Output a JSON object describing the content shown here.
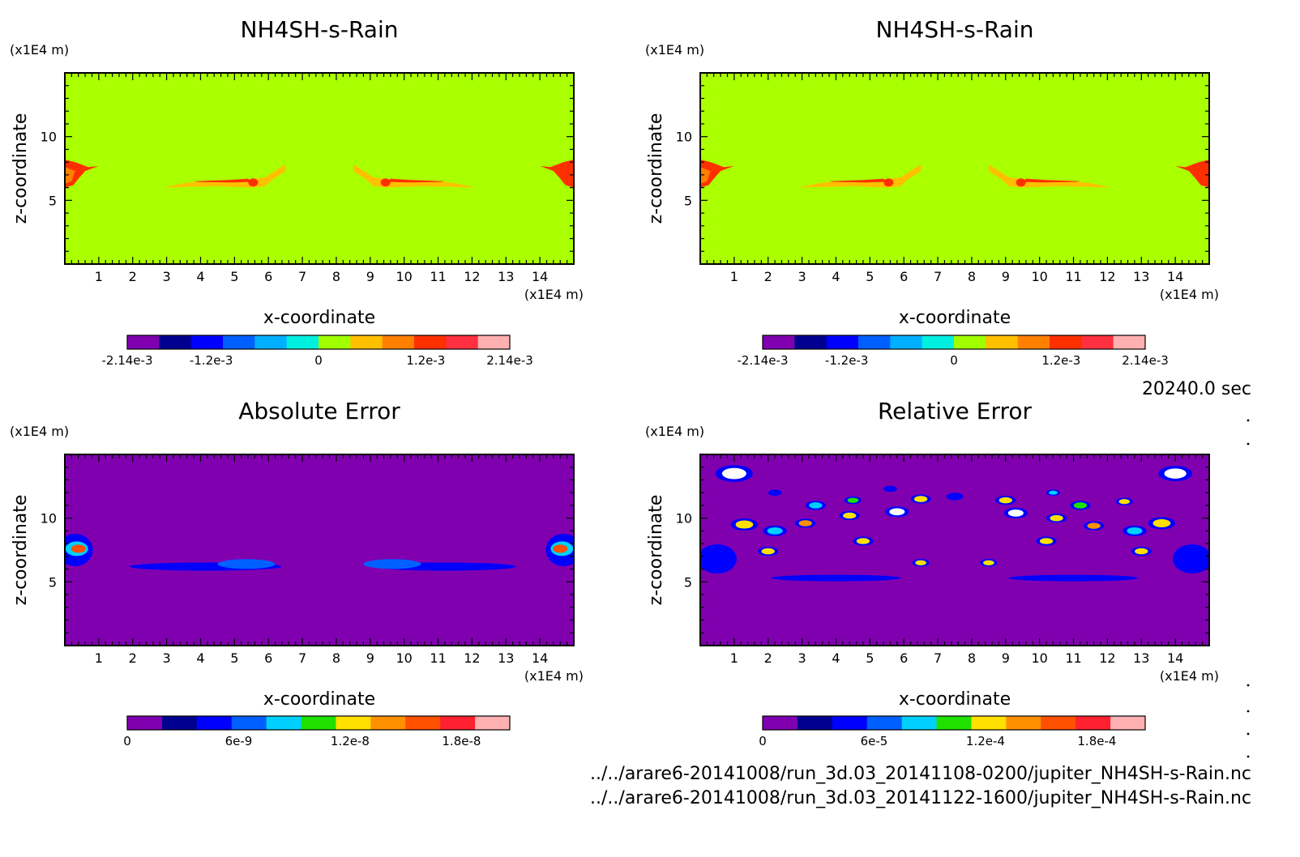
{
  "time_label": "20240.0 sec",
  "files": [
    "../../arare6-20141008/run_3d.03_20141108-0200/jupiter_NH4SH-s-Rain.nc",
    "../../arare6-20141008/run_3d.03_20141122-1600/jupiter_NH4SH-s-Rain.nc"
  ],
  "chart_data": [
    {
      "type": "heatmap",
      "title": "NH4SH-s-Rain",
      "xlabel": "x-coordinate",
      "ylabel": "z-coordinate",
      "xunit": "(x1E4 m)",
      "yunit": "(x1E4 m)",
      "xlim": [
        0,
        15
      ],
      "ylim": [
        0,
        15
      ],
      "xticks": [
        1,
        2,
        3,
        4,
        5,
        6,
        7,
        8,
        9,
        10,
        11,
        12,
        13,
        14
      ],
      "yticks": [
        5,
        10
      ],
      "background_color": "#aaff00",
      "colorbar": {
        "colors": [
          "#8000b0",
          "#000090",
          "#0000ff",
          "#0060ff",
          "#00b0ff",
          "#00f0e0",
          "#a0ff00",
          "#ffc000",
          "#ff8000",
          "#ff3000",
          "#ff3040",
          "#ffb0b0"
        ],
        "tick_labels": [
          "-2.14e-3",
          "-1.2e-3",
          "0",
          "1.2e-3",
          "2.14e-3"
        ],
        "tick_values": [
          -0.00214,
          -0.0012,
          0,
          0.0012,
          0.00214
        ],
        "range": [
          -0.00214,
          0.00214
        ]
      },
      "features": "positive values (orange/red) near z=6-7.5 at x=0-1, x=2.5-6.5, x=8.5-13, x=14-15"
    },
    {
      "type": "heatmap",
      "title": "NH4SH-s-Rain",
      "xlabel": "x-coordinate",
      "ylabel": "z-coordinate",
      "xunit": "(x1E4 m)",
      "yunit": "(x1E4 m)",
      "xlim": [
        0,
        15
      ],
      "ylim": [
        0,
        15
      ],
      "xticks": [
        1,
        2,
        3,
        4,
        5,
        6,
        7,
        8,
        9,
        10,
        11,
        12,
        13,
        14
      ],
      "yticks": [
        5,
        10
      ],
      "background_color": "#aaff00",
      "colorbar": {
        "colors": [
          "#8000b0",
          "#000090",
          "#0000ff",
          "#0060ff",
          "#00b0ff",
          "#00f0e0",
          "#a0ff00",
          "#ffc000",
          "#ff8000",
          "#ff3000",
          "#ff3040",
          "#ffb0b0"
        ],
        "tick_labels": [
          "-2.14e-3",
          "-1.2e-3",
          "0",
          "1.2e-3",
          "2.14e-3"
        ],
        "tick_values": [
          -0.00214,
          -0.0012,
          0,
          0.0012,
          0.00214
        ],
        "range": [
          -0.00214,
          0.00214
        ]
      }
    },
    {
      "type": "heatmap",
      "title": "Absolute Error",
      "xlabel": "x-coordinate",
      "ylabel": "z-coordinate",
      "xunit": "(x1E4 m)",
      "yunit": "(x1E4 m)",
      "xlim": [
        0,
        15
      ],
      "ylim": [
        0,
        15
      ],
      "xticks": [
        1,
        2,
        3,
        4,
        5,
        6,
        7,
        8,
        9,
        10,
        11,
        12,
        13,
        14
      ],
      "yticks": [
        5,
        10
      ],
      "background_color": "#8000b0",
      "colorbar": {
        "colors": [
          "#8000b0",
          "#000090",
          "#0000ff",
          "#0060ff",
          "#00d0ff",
          "#20e000",
          "#ffe000",
          "#ff9000",
          "#ff5000",
          "#ff2030",
          "#ffb0b0"
        ],
        "tick_labels": [
          "0",
          "6e-9",
          "1.2e-8",
          "1.8e-8"
        ],
        "tick_values": [
          0,
          6e-09,
          1.2e-08,
          1.8e-08
        ],
        "range": [
          0,
          2.06e-08
        ]
      }
    },
    {
      "type": "heatmap",
      "title": "Relative Error",
      "xlabel": "x-coordinate",
      "ylabel": "z-coordinate",
      "xunit": "(x1E4 m)",
      "yunit": "(x1E4 m)",
      "xlim": [
        0,
        15
      ],
      "ylim": [
        0,
        15
      ],
      "xticks": [
        1,
        2,
        3,
        4,
        5,
        6,
        7,
        8,
        9,
        10,
        11,
        12,
        13,
        14
      ],
      "yticks": [
        5,
        10
      ],
      "background_color": "#8000b0",
      "colorbar": {
        "colors": [
          "#8000b0",
          "#000090",
          "#0000ff",
          "#0060ff",
          "#00d0ff",
          "#20e000",
          "#ffe000",
          "#ff9000",
          "#ff5000",
          "#ff2030",
          "#ffb0b0"
        ],
        "tick_labels": [
          "0",
          "6e-5",
          "1.2e-4",
          "1.8e-4"
        ],
        "tick_values": [
          0,
          6e-05,
          0.00012,
          0.00018
        ],
        "range": [
          0,
          0.000206
        ]
      }
    }
  ]
}
